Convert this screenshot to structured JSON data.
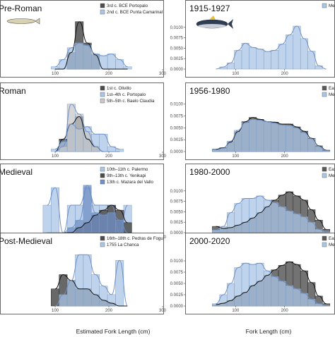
{
  "chart_data": {
    "type": "bar",
    "left_xlabel": "Estimated Fork Length (cm)",
    "right_xlabel": "Fork Length (cm)",
    "colors": {
      "light_blue": "#a9c6e6",
      "mid_blue": "#6f8fc6",
      "dark_grey": "#4d4d4d",
      "light_grey": "#c8c8c8",
      "east_grey": "#5a5a5a",
      "med_blue": "#a9c6e6"
    },
    "panels": [
      {
        "title": "Pre-Roman",
        "x": [
          100,
          115,
          130,
          145,
          160,
          175,
          190,
          205,
          220,
          235
        ],
        "xlim": [
          0,
          300
        ],
        "xticks": [
          100,
          200,
          300
        ],
        "legend": [
          {
            "label": "3rd c. BCE Portopalo",
            "color": "#4d4d4d"
          },
          {
            "label": "2nd c. BCE Punta Camarinal",
            "color": "#a9c6e6"
          }
        ],
        "series": [
          {
            "name": "3rd c. BCE Portopalo",
            "color": "#4d4d4d",
            "values": [
              0.0,
              0.0,
              0.35,
              1.0,
              0.55,
              0.3,
              0.0,
              0.0,
              0.0,
              0.0
            ]
          },
          {
            "name": "2nd c. BCE Punta Camarinal",
            "color": "#a9c6e6",
            "values": [
              0.05,
              0.2,
              0.45,
              0.55,
              0.5,
              0.32,
              0.28,
              0.32,
              0.2,
              0.05
            ]
          }
        ],
        "icon": "fish-sketch-icon"
      },
      {
        "title": "Roman",
        "x": [
          100,
          115,
          130,
          145,
          160,
          175,
          190,
          205,
          220
        ],
        "xlim": [
          0,
          300
        ],
        "xticks": [
          100,
          200,
          300
        ],
        "legend": [
          {
            "label": "1st c. Olivillo",
            "color": "#4d4d4d"
          },
          {
            "label": "1st–4th c. Portopalo",
            "color": "#a9c6e6"
          },
          {
            "label": "5th–5th c. Baelo Claudia",
            "color": "#c8c8c8"
          }
        ],
        "series": [
          {
            "name": "1st c. Olivillo",
            "color": "#4d4d4d",
            "values": [
              0.0,
              0.25,
              0.55,
              0.7,
              0.25,
              0.1,
              0.0,
              0.0,
              0.0
            ]
          },
          {
            "name": "1st–4th c. Portopalo",
            "color": "#a9c6e6",
            "values": [
              0.05,
              0.2,
              0.55,
              0.45,
              0.5,
              0.35,
              0.35,
              0.1,
              0.05
            ]
          },
          {
            "name": "5th–5th c. Baelo Claudia",
            "color": "#c8c8c8",
            "values": [
              0.0,
              0.1,
              0.95,
              0.75,
              0.4,
              0.1,
              0.0,
              0.0,
              0.0
            ]
          }
        ]
      },
      {
        "title": "Medieval",
        "x": [
          85,
          100,
          115,
          130,
          145,
          160,
          175,
          190,
          205,
          220,
          235
        ],
        "xlim": [
          0,
          300
        ],
        "xticks": [
          100,
          200,
          300
        ],
        "legend": [
          {
            "label": "10th–11th c. Palermo",
            "color": "#a9c6e6"
          },
          {
            "label": "9th–13th c. Yenikapi",
            "color": "#4d4d4d"
          },
          {
            "label": "13th c. Mazara del Vallo",
            "color": "#6f8fc6"
          }
        ],
        "series": [
          {
            "name": "10th–11th c. Palermo",
            "color": "#a9c6e6",
            "values": [
              0.55,
              0.9,
              0.0,
              0.55,
              0.55,
              0.9,
              0.55,
              0.55,
              0.55,
              0.0,
              0.55
            ]
          },
          {
            "name": "9th–13th c. Yenikapi",
            "color": "#4d4d4d",
            "values": [
              0.0,
              0.0,
              0.0,
              0.0,
              0.1,
              0.2,
              0.35,
              0.45,
              0.55,
              0.45,
              0.2
            ]
          },
          {
            "name": "13th c. Mazara del Vallo",
            "color": "#6f8fc6",
            "values": [
              0.0,
              0.0,
              0.0,
              0.1,
              0.25,
              0.95,
              0.4,
              0.35,
              0.4,
              0.25,
              0.0
            ]
          }
        ]
      },
      {
        "title": "Post-Medieval",
        "x": [
          100,
          115,
          130,
          145,
          160,
          175,
          190,
          205,
          220,
          235
        ],
        "xlim": [
          0,
          300
        ],
        "xticks": [
          100,
          200,
          300
        ],
        "legend": [
          {
            "label": "16th–18th c. Pedras de Fogu",
            "color": "#4d4d4d"
          },
          {
            "label": "1755 La Chanca",
            "color": "#a9c6e6"
          }
        ],
        "series": [
          {
            "name": "16th–18th c. Pedras de Fogu",
            "color": "#4d4d4d",
            "values": [
              0.3,
              0.55,
              0.45,
              0.3,
              0.3,
              0.2,
              0.1,
              0.05,
              0.0,
              0.0
            ]
          },
          {
            "name": "1755 La Chanca",
            "color": "#a9c6e6",
            "values": [
              0.0,
              0.2,
              0.45,
              0.9,
              0.9,
              0.55,
              0.35,
              0.2,
              0.8,
              0.0
            ]
          }
        ]
      },
      {
        "title": "1915-1927",
        "x": [
          60,
          75,
          90,
          105,
          120,
          135,
          150,
          165,
          180,
          195,
          210,
          225,
          240,
          255,
          270,
          285
        ],
        "xlim": [
          0,
          300
        ],
        "xticks": [
          100,
          200
        ],
        "ylim": [
          0,
          0.0125
        ],
        "yticks": [
          0,
          0.0025,
          0.005,
          0.0075,
          0.01
        ],
        "ytick_labels": [
          "0.0000",
          "0.0025",
          "0.0050",
          "0.0075",
          "0.0100"
        ],
        "legend": [
          {
            "label": "Med",
            "color": "#a9c6e6"
          }
        ],
        "series": [
          {
            "name": "Med",
            "color": "#a9c6e6",
            "values": [
              0.0,
              0.0005,
              0.0015,
              0.0045,
              0.0062,
              0.0052,
              0.0048,
              0.0042,
              0.0045,
              0.006,
              0.0082,
              0.0103,
              0.0073,
              0.0043,
              0.0008,
              0.0
            ]
          }
        ],
        "icon": "tuna-icon"
      },
      {
        "title": "1956-1980",
        "x": [
          60,
          75,
          90,
          105,
          120,
          135,
          150,
          165,
          180,
          195,
          210,
          225,
          240,
          255,
          270,
          285
        ],
        "xlim": [
          0,
          300
        ],
        "xticks": [
          100,
          200
        ],
        "ylim": [
          0,
          0.011
        ],
        "yticks": [
          0,
          0.0025,
          0.005,
          0.0075,
          0.01
        ],
        "ytick_labels": [
          "0.0000",
          "0.0025",
          "0.0050",
          "0.0075",
          "0.0100"
        ],
        "legend": [
          {
            "label": "East",
            "color": "#5a5a5a"
          },
          {
            "label": "Med",
            "color": "#a9c6e6"
          }
        ],
        "series": [
          {
            "name": "East",
            "color": "#5a5a5a",
            "values": [
              0.0005,
              0.0008,
              0.002,
              0.0042,
              0.0063,
              0.0072,
              0.0068,
              0.0063,
              0.0062,
              0.0058,
              0.0058,
              0.0052,
              0.0043,
              0.0028,
              0.0012,
              0.0003
            ]
          },
          {
            "name": "Med",
            "color": "#a9c6e6",
            "values": [
              0.0004,
              0.0007,
              0.0022,
              0.0045,
              0.0061,
              0.0068,
              0.0066,
              0.0063,
              0.006,
              0.0056,
              0.0055,
              0.005,
              0.004,
              0.0027,
              0.0011,
              0.0002
            ]
          }
        ]
      },
      {
        "title": "1980-2000",
        "x": [
          60,
          75,
          90,
          105,
          120,
          135,
          150,
          165,
          180,
          195,
          210,
          225,
          240,
          255,
          270,
          285
        ],
        "xlim": [
          0,
          300
        ],
        "xticks": [
          100,
          200
        ],
        "ylim": [
          0,
          0.0125
        ],
        "yticks": [
          0,
          0.0025,
          0.005,
          0.0075,
          0.01
        ],
        "ytick_labels": [
          "0.0000",
          "0.0025",
          "0.0050",
          "0.0075",
          "0.0100"
        ],
        "legend": [
          {
            "label": "East",
            "color": "#5a5a5a"
          },
          {
            "label": "Med",
            "color": "#a9c6e6"
          }
        ],
        "series": [
          {
            "name": "East",
            "color": "#5a5a5a",
            "values": [
              0.0015,
              0.001,
              0.0012,
              0.0018,
              0.0025,
              0.0035,
              0.0048,
              0.0062,
              0.0078,
              0.009,
              0.0098,
              0.0088,
              0.0078,
              0.0055,
              0.003,
              0.0008
            ]
          },
          {
            "name": "Med",
            "color": "#a9c6e6",
            "values": [
              0.0006,
              0.0015,
              0.0048,
              0.007,
              0.0082,
              0.0082,
              0.0088,
              0.0078,
              0.0072,
              0.0062,
              0.0052,
              0.0045,
              0.0038,
              0.0025,
              0.0008,
              0.0002
            ]
          }
        ]
      },
      {
        "title": "2000-2020",
        "x": [
          60,
          75,
          90,
          105,
          120,
          135,
          150,
          165,
          180,
          195,
          210,
          225,
          240,
          255,
          270,
          285
        ],
        "xlim": [
          0,
          300
        ],
        "xticks": [
          100,
          200
        ],
        "ylim": [
          0,
          0.0125
        ],
        "yticks": [
          0,
          0.0025,
          0.005,
          0.0075,
          0.01
        ],
        "ytick_labels": [
          "0.0000",
          "0.0025",
          "0.0050",
          "0.0075",
          "0.0100"
        ],
        "legend": [
          {
            "label": "East",
            "color": "#5a5a5a"
          },
          {
            "label": "Med",
            "color": "#a9c6e6"
          }
        ],
        "series": [
          {
            "name": "East",
            "color": "#5a5a5a",
            "values": [
              0.0003,
              0.0006,
              0.0012,
              0.0022,
              0.003,
              0.0045,
              0.0055,
              0.0068,
              0.008,
              0.009,
              0.0098,
              0.0092,
              0.0078,
              0.0052,
              0.0022,
              0.0005
            ]
          },
          {
            "name": "Med",
            "color": "#a9c6e6",
            "values": [
              0.0005,
              0.0025,
              0.005,
              0.0085,
              0.0095,
              0.0092,
              0.0095,
              0.0078,
              0.0065,
              0.0055,
              0.0045,
              0.0038,
              0.0028,
              0.0015,
              0.0005,
              0.0001
            ]
          }
        ]
      }
    ]
  }
}
